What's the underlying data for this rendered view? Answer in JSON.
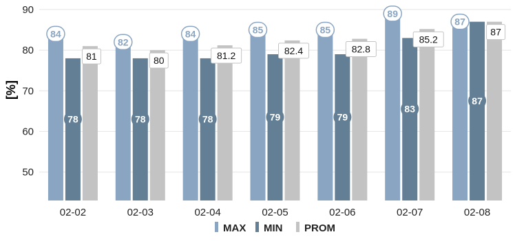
{
  "chart_data": {
    "type": "bar",
    "title": "",
    "xlabel": "",
    "ylabel": "[%]",
    "ylim": [
      43,
      91
    ],
    "yticks": [
      50,
      60,
      70,
      80,
      90
    ],
    "grid": true,
    "legend_position": "bottom-center",
    "categories": [
      "02-02",
      "02-03",
      "02-04",
      "02-05",
      "02-06",
      "02-07",
      "02-08"
    ],
    "series": [
      {
        "name": "MAX",
        "color": "#8aa5c2",
        "label_style": "outline-pill",
        "values": [
          84,
          82,
          84,
          85,
          85,
          89,
          87
        ]
      },
      {
        "name": "MIN",
        "color": "#627f96",
        "label_style": "filled-pill",
        "values": [
          78,
          78,
          78,
          79,
          79,
          83,
          87
        ]
      },
      {
        "name": "PROM",
        "color": "#c3c3c3",
        "label_style": "box",
        "values": [
          81,
          80,
          81.2,
          82.4,
          82.8,
          85.2,
          87
        ]
      }
    ]
  }
}
